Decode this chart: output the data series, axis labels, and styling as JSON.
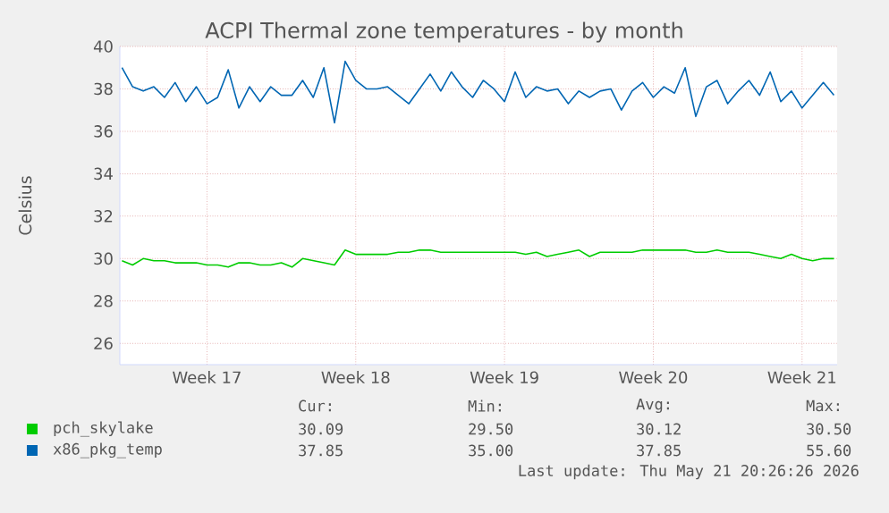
{
  "chart_data": {
    "type": "line",
    "title": "ACPI Thermal zone temperatures - by month",
    "ylabel": "Celsius",
    "categories": [
      null,
      null,
      null,
      null,
      null,
      null,
      null,
      null,
      "Week 17",
      null,
      null,
      null,
      null,
      null,
      null,
      null,
      null,
      null,
      null,
      null,
      null,
      null,
      "Week 18",
      null,
      null,
      null,
      null,
      null,
      null,
      null,
      null,
      null,
      null,
      null,
      null,
      null,
      "Week 19",
      null,
      null,
      null,
      null,
      null,
      null,
      null,
      null,
      null,
      null,
      null,
      null,
      null,
      "Week 20",
      null,
      null,
      null,
      null,
      null,
      null,
      null,
      null,
      null,
      null,
      null,
      null,
      null,
      "Week 21",
      null,
      null,
      null
    ],
    "ylim": [
      25,
      40
    ],
    "yticks": [
      26,
      28,
      30,
      32,
      34,
      36,
      38,
      40
    ],
    "grid": true,
    "legend": "bottom",
    "marker": "none",
    "line_style": "solid",
    "series": [
      {
        "name": "pch_skylake",
        "color": "#00cc00",
        "values": [
          29.9,
          29.7,
          30.0,
          29.9,
          29.9,
          29.8,
          29.8,
          29.8,
          29.7,
          29.7,
          29.6,
          29.8,
          29.8,
          29.7,
          29.7,
          29.8,
          29.6,
          30.0,
          29.9,
          29.8,
          29.7,
          30.4,
          30.2,
          30.2,
          30.2,
          30.2,
          30.3,
          30.3,
          30.4,
          30.4,
          30.3,
          30.3,
          30.3,
          30.3,
          30.3,
          30.3,
          30.3,
          30.3,
          30.2,
          30.3,
          30.1,
          30.2,
          30.3,
          30.4,
          30.1,
          30.3,
          30.3,
          30.3,
          30.3,
          30.4,
          30.4,
          30.4,
          30.4,
          30.4,
          30.3,
          30.3,
          30.4,
          30.3,
          30.3,
          30.3,
          30.2,
          30.1,
          30.0,
          30.2,
          30.0,
          29.9,
          30.0,
          30.0
        ]
      },
      {
        "name": "x86_pkg_temp",
        "color": "#0066b3",
        "values": [
          39.0,
          38.1,
          37.9,
          38.1,
          37.6,
          38.3,
          37.4,
          38.1,
          37.3,
          37.6,
          38.9,
          37.1,
          38.1,
          37.4,
          38.1,
          37.7,
          37.7,
          38.4,
          37.6,
          39.0,
          36.4,
          39.3,
          38.4,
          38.0,
          38.0,
          38.1,
          37.7,
          37.3,
          38.0,
          38.7,
          37.9,
          38.8,
          38.1,
          37.6,
          38.4,
          38.0,
          37.4,
          38.8,
          37.6,
          38.1,
          37.9,
          38.0,
          37.3,
          37.9,
          37.6,
          37.9,
          38.0,
          37.0,
          37.9,
          38.3,
          37.6,
          38.1,
          37.8,
          39.0,
          36.7,
          38.1,
          38.4,
          37.3,
          37.9,
          38.4,
          37.7,
          38.8,
          37.4,
          37.9,
          37.1,
          37.7,
          38.3,
          37.7
        ]
      }
    ],
    "annotations": [
      "Cur:",
      "Min:",
      "Avg:",
      "Max:",
      "30.09",
      "29.50",
      "30.12",
      "30.50",
      "37.85",
      "35.00",
      "37.85",
      "55.60",
      "Last update: Thu May 21 20:26:26 2026"
    ]
  }
}
